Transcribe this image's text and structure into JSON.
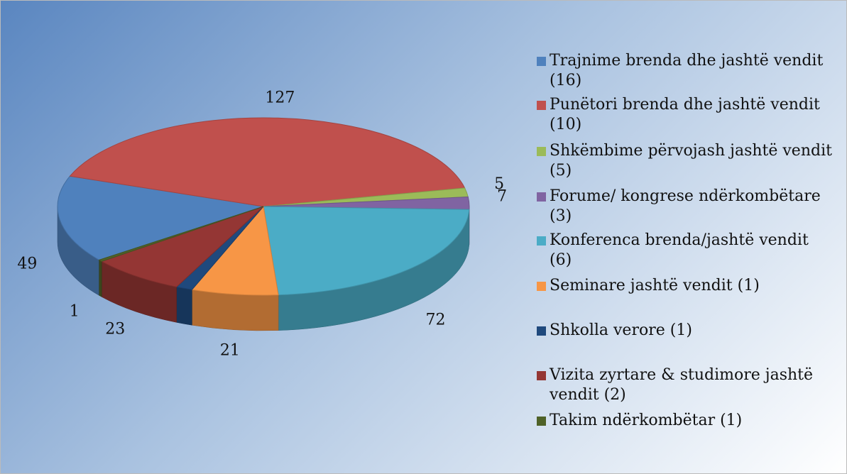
{
  "chart_data": {
    "type": "pie",
    "categories": [
      "Trajnime brenda dhe jashtë vendit (16)",
      "Punëtori brenda dhe jashtë vendit (10)",
      "Shkëmbime përvojash jashtë vendit (5)",
      "Forume/ kongrese ndërkombëtare (3)",
      "Konferenca brenda/jashtë vendit (6)",
      "Seminare jashtë vendit (1)",
      "Shkolla verore (1)",
      "Vizita zyrtare & studimore jashtë vendit (2)",
      "Takim ndërkombëtar (1)"
    ],
    "values": [
      49,
      127,
      5,
      7,
      72,
      21,
      4,
      23,
      1
    ],
    "value_labels": [
      "49",
      "127",
      "5",
      "7",
      "72",
      "21",
      null,
      "23",
      "1"
    ],
    "colors": [
      "#4f81bd",
      "#c0504d",
      "#9bbb59",
      "#8064a2",
      "#4bacc6",
      "#f79646",
      "#1f497d",
      "#943634",
      "#4f6228"
    ]
  }
}
